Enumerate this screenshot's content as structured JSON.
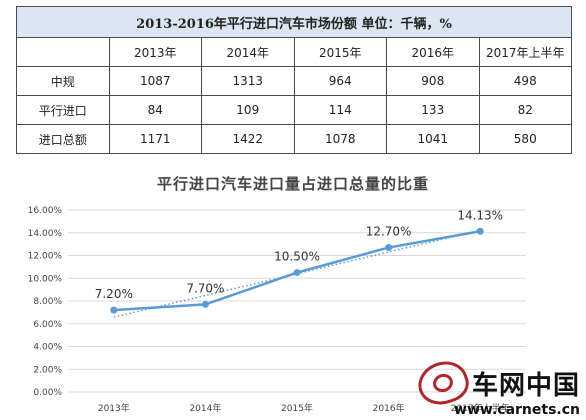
{
  "table": {
    "title": "2013-2016年平行进口汽车市场份额    单位：千辆，%",
    "headers": [
      "",
      "2013年",
      "2014年",
      "2015年",
      "2016年",
      "2017年上半年"
    ],
    "rows": [
      {
        "label": "中规",
        "values": [
          "1087",
          "1313",
          "964",
          "908",
          "498"
        ]
      },
      {
        "label": "平行进口",
        "values": [
          "84",
          "109",
          "114",
          "133",
          "82"
        ]
      },
      {
        "label": "进口总额",
        "values": [
          "1171",
          "1422",
          "1078",
          "1041",
          "580"
        ]
      }
    ]
  },
  "chart_data": {
    "type": "line",
    "title": "平行进口汽车进口量占进口总量的比重",
    "categories": [
      "2013年",
      "2014年",
      "2015年",
      "2016年",
      "2017年上半年"
    ],
    "series": [
      {
        "values": [
          7.2,
          7.7,
          10.5,
          12.7,
          14.13
        ],
        "labels": [
          "7.20%",
          "7.70%",
          "10.50%",
          "12.70%",
          "14.13%"
        ],
        "color": "#5b9bd5"
      }
    ],
    "trendline": {
      "style": "dotted",
      "color": "#5b9bd5"
    },
    "ylim": [
      0,
      16
    ],
    "yticks": [
      "0.00%",
      "2.00%",
      "4.00%",
      "6.00%",
      "8.00%",
      "10.00%",
      "12.00%",
      "14.00%",
      "16.00%"
    ],
    "grid": true,
    "xlabel": "",
    "ylabel": ""
  },
  "watermark": {
    "name": "车网中国",
    "url": "www.carnets.cn"
  }
}
